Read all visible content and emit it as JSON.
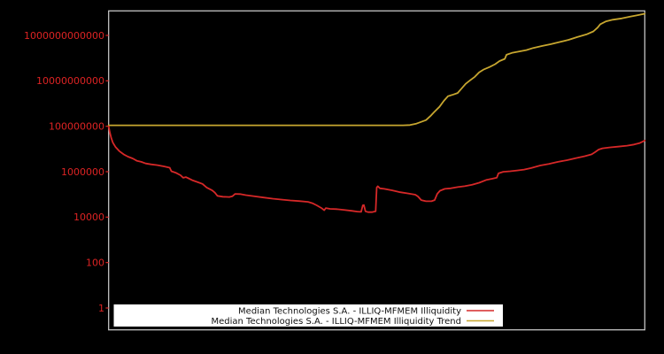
{
  "colors": {
    "background": "#000000",
    "axis_border": "#c3c3c3",
    "tick_label": "#dd2323",
    "series_red": "#d62828",
    "series_khaki": "#c7a62f",
    "legend_bg": "#ffffff",
    "legend_text": "#111111"
  },
  "chart_data": {
    "type": "line",
    "title": "",
    "xlabel": "",
    "ylabel": "",
    "grid": false,
    "x_axis": {
      "tick_labels_visible": false
    },
    "y_axis": {
      "scale": "log",
      "tick_values": [
        1,
        100,
        10000,
        1000000,
        100000000,
        10000000000,
        1000000000000
      ],
      "tick_labels": [
        "1",
        "100",
        "10000",
        "1000000",
        "100000000",
        "10000000000",
        "1000000000000"
      ],
      "ylim": [
        0.109,
        12000000000000
      ]
    },
    "legend": {
      "position": "lower center",
      "background": "#ffffff"
    },
    "series": [
      {
        "name": "Median Technologies S.A. - ILLIQ-MFMEM Illiquidity",
        "color": "#d62828",
        "points": [
          [
            0.0,
            100000000.0
          ],
          [
            0.002,
            57000000.0
          ],
          [
            0.005,
            30000000.0
          ],
          [
            0.008,
            19000000.0
          ],
          [
            0.013,
            12000000.0
          ],
          [
            0.02,
            8000000.0
          ],
          [
            0.028,
            5800000.0
          ],
          [
            0.036,
            4600000.0
          ],
          [
            0.045,
            3800000.0
          ],
          [
            0.053,
            3000000.0
          ],
          [
            0.061,
            2700000.0
          ],
          [
            0.069,
            2300000.0
          ],
          [
            0.079,
            2100000.0
          ],
          [
            0.091,
            1950000.0
          ],
          [
            0.104,
            1700000.0
          ],
          [
            0.114,
            1500000.0
          ],
          [
            0.117,
            1050000.0
          ],
          [
            0.126,
            880000.0
          ],
          [
            0.134,
            700000.0
          ],
          [
            0.139,
            540000.0
          ],
          [
            0.144,
            580000.0
          ],
          [
            0.149,
            510000.0
          ],
          [
            0.157,
            410000.0
          ],
          [
            0.167,
            340000.0
          ],
          [
            0.175,
            290000.0
          ],
          [
            0.183,
            200000.0
          ],
          [
            0.193,
            150000.0
          ],
          [
            0.198,
            120000.0
          ],
          [
            0.203,
            86000.0
          ],
          [
            0.213,
            79000.0
          ],
          [
            0.225,
            77000.0
          ],
          [
            0.231,
            83000.0
          ],
          [
            0.236,
            105000.0
          ],
          [
            0.245,
            103000.0
          ],
          [
            0.256,
            93000.0
          ],
          [
            0.273,
            82000.0
          ],
          [
            0.289,
            73000.0
          ],
          [
            0.306,
            65000.0
          ],
          [
            0.322,
            59000.0
          ],
          [
            0.339,
            54000.0
          ],
          [
            0.355,
            51000.0
          ],
          [
            0.372,
            47000.0
          ],
          [
            0.38,
            41000.0
          ],
          [
            0.388,
            33000.0
          ],
          [
            0.397,
            25000.0
          ],
          [
            0.402,
            20000.0
          ],
          [
            0.405,
            25000.0
          ],
          [
            0.413,
            23000.0
          ],
          [
            0.425,
            22500.0
          ],
          [
            0.438,
            21000.0
          ],
          [
            0.453,
            19000.0
          ],
          [
            0.464,
            17500.0
          ],
          [
            0.471,
            17000.0
          ],
          [
            0.474,
            33000.0
          ],
          [
            0.476,
            34000.0
          ],
          [
            0.479,
            18000.0
          ],
          [
            0.484,
            16500.0
          ],
          [
            0.491,
            16500.0
          ],
          [
            0.498,
            18000.0
          ],
          [
            0.5,
            200000.0
          ],
          [
            0.502,
            230000.0
          ],
          [
            0.506,
            185000.0
          ],
          [
            0.514,
            175000.0
          ],
          [
            0.529,
            150000.0
          ],
          [
            0.544,
            125000.0
          ],
          [
            0.559,
            110000.0
          ],
          [
            0.572,
            97000.0
          ],
          [
            0.577,
            81000.0
          ],
          [
            0.583,
            56000.0
          ],
          [
            0.592,
            50000.0
          ],
          [
            0.602,
            50000.0
          ],
          [
            0.608,
            56000.0
          ],
          [
            0.613,
            106000.0
          ],
          [
            0.618,
            145000.0
          ],
          [
            0.627,
            175000.0
          ],
          [
            0.638,
            185000.0
          ],
          [
            0.651,
            210000.0
          ],
          [
            0.664,
            230000.0
          ],
          [
            0.678,
            265000.0
          ],
          [
            0.691,
            325000.0
          ],
          [
            0.704,
            430000.0
          ],
          [
            0.716,
            490000.0
          ],
          [
            0.724,
            550000.0
          ],
          [
            0.727,
            840000.0
          ],
          [
            0.736,
            990000.0
          ],
          [
            0.749,
            1050000.0
          ],
          [
            0.762,
            1130000.0
          ],
          [
            0.775,
            1240000.0
          ],
          [
            0.788,
            1450000.0
          ],
          [
            0.805,
            1870000.0
          ],
          [
            0.821,
            2200000.0
          ],
          [
            0.838,
            2700000.0
          ],
          [
            0.855,
            3200000.0
          ],
          [
            0.871,
            3900000.0
          ],
          [
            0.888,
            4800000.0
          ],
          [
            0.901,
            5800000.0
          ],
          [
            0.907,
            7200000.0
          ],
          [
            0.914,
            9400000.0
          ],
          [
            0.921,
            10700000.0
          ],
          [
            0.934,
            11700000.0
          ],
          [
            0.95,
            12700000.0
          ],
          [
            0.967,
            14000000.0
          ],
          [
            0.98,
            15700000.0
          ],
          [
            0.99,
            18000000.0
          ],
          [
            1.0,
            23500000.0
          ]
        ]
      },
      {
        "name": "Median Technologies S.A. - ILLIQ-MFMEM Illiquidity Trend",
        "color": "#c7a62f",
        "points": [
          [
            0.0,
            110000000.0
          ],
          [
            0.549,
            110000000.0
          ],
          [
            0.562,
            113000000.0
          ],
          [
            0.574,
            130000000.0
          ],
          [
            0.583,
            156000000.0
          ],
          [
            0.592,
            187000000.0
          ],
          [
            0.6,
            280000000.0
          ],
          [
            0.608,
            440000000.0
          ],
          [
            0.617,
            720000000.0
          ],
          [
            0.625,
            1300000000.0
          ],
          [
            0.633,
            2100000000.0
          ],
          [
            0.643,
            2500000000.0
          ],
          [
            0.651,
            2900000000.0
          ],
          [
            0.658,
            4500000000.0
          ],
          [
            0.666,
            7400000000.0
          ],
          [
            0.674,
            10500000000.0
          ],
          [
            0.683,
            15000000000.0
          ],
          [
            0.691,
            23500000000.0
          ],
          [
            0.699,
            31000000000.0
          ],
          [
            0.711,
            41000000000.0
          ],
          [
            0.721,
            54000000000.0
          ],
          [
            0.729,
            74000000000.0
          ],
          [
            0.739,
            93000000000.0
          ],
          [
            0.742,
            140000000000.0
          ],
          [
            0.752,
            170000000000.0
          ],
          [
            0.765,
            195000000000.0
          ],
          [
            0.779,
            225000000000.0
          ],
          [
            0.792,
            280000000000.0
          ],
          [
            0.808,
            340000000000.0
          ],
          [
            0.825,
            410000000000.0
          ],
          [
            0.841,
            510000000000.0
          ],
          [
            0.858,
            640000000000.0
          ],
          [
            0.874,
            840000000000.0
          ],
          [
            0.891,
            1100000000000.0
          ],
          [
            0.904,
            1500000000000.0
          ],
          [
            0.912,
            2200000000000.0
          ],
          [
            0.917,
            3100000000000.0
          ],
          [
            0.927,
            4100000000000.0
          ],
          [
            0.94,
            4900000000000.0
          ],
          [
            0.957,
            5600000000000.0
          ],
          [
            0.973,
            6700000000000.0
          ],
          [
            0.987,
            7800000000000.0
          ],
          [
            1.0,
            9000000000000.0
          ]
        ]
      }
    ]
  }
}
